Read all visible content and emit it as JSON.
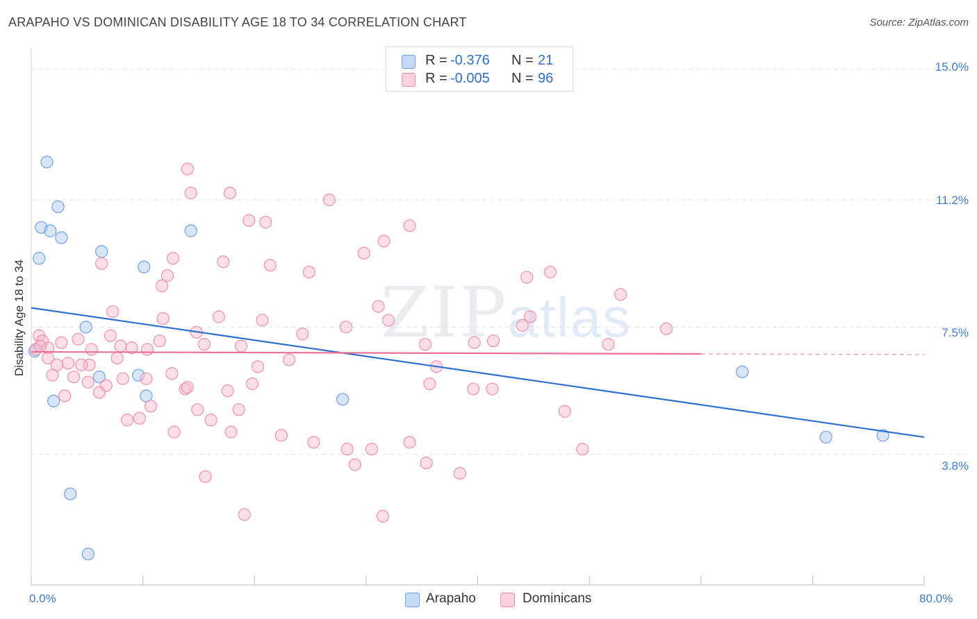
{
  "header": {
    "title": "ARAPAHO VS DOMINICAN DISABILITY AGE 18 TO 34 CORRELATION CHART",
    "source": "Source: ZipAtlas.com"
  },
  "legend": {
    "series": [
      {
        "r_label": "R =",
        "r_value": "-0.376",
        "n_label": "N =",
        "n_value": "21",
        "color": "#a8c8f0"
      },
      {
        "r_label": "R =",
        "r_value": "-0.005",
        "n_label": "N =",
        "n_value": "96",
        "color": "#f6b8cb"
      }
    ]
  },
  "bottom_legend": {
    "items": [
      {
        "label": "Arapaho",
        "color": "#a8c8f0"
      },
      {
        "label": "Dominicans",
        "color": "#f6b8cb"
      }
    ]
  },
  "watermark": {
    "zip": "ZIP",
    "atlas": "atlas"
  },
  "chart_data": {
    "type": "scatter",
    "title": "ARAPAHO VS DOMINICAN DISABILITY AGE 18 TO 34 CORRELATION CHART",
    "xlabel": "",
    "ylabel": "Disability Age 18 to 34",
    "xlim": [
      0,
      80
    ],
    "ylim": [
      0,
      15.6
    ],
    "x_tick_labels": [
      {
        "value": 0,
        "label": "0.0%"
      },
      {
        "value": 80,
        "label": "80.0%"
      }
    ],
    "y_tick_labels": [
      {
        "value": 15.0,
        "label": "15.0%"
      },
      {
        "value": 11.2,
        "label": "11.2%"
      },
      {
        "value": 7.5,
        "label": "7.5%"
      },
      {
        "value": 3.8,
        "label": "3.8%"
      }
    ],
    "series": [
      {
        "name": "Arapaho",
        "color": "#6ea0e6",
        "fill": "#a8c8f0",
        "trend": {
          "x": [
            0,
            80
          ],
          "y": [
            8.06,
            4.3
          ],
          "color": "#2f6fd1"
        },
        "points": [
          [
            1.4,
            12.3
          ],
          [
            2.4,
            11.0
          ],
          [
            0.9,
            10.4
          ],
          [
            1.7,
            10.3
          ],
          [
            2.7,
            10.1
          ],
          [
            0.7,
            9.5
          ],
          [
            6.3,
            9.7
          ],
          [
            10.1,
            9.25
          ],
          [
            14.3,
            10.3
          ],
          [
            4.9,
            7.5
          ],
          [
            0.3,
            6.8
          ],
          [
            9.6,
            6.1
          ],
          [
            6.1,
            6.05
          ],
          [
            2.0,
            5.35
          ],
          [
            10.3,
            5.5
          ],
          [
            27.9,
            5.4
          ],
          [
            63.7,
            6.2
          ],
          [
            71.2,
            4.3
          ],
          [
            76.3,
            4.35
          ],
          [
            3.5,
            2.65
          ],
          [
            5.1,
            0.9
          ]
        ]
      },
      {
        "name": "Dominicans",
        "color": "#ee8fae",
        "fill": "#f6b8cb",
        "trend": {
          "x": [
            0,
            60
          ],
          "y": [
            6.78,
            6.72
          ],
          "dashed_to": 80,
          "color": "#e86f98"
        },
        "points": [
          [
            14.0,
            12.1
          ],
          [
            14.3,
            11.4
          ],
          [
            17.8,
            11.4
          ],
          [
            26.7,
            11.2
          ],
          [
            19.5,
            10.6
          ],
          [
            21.0,
            10.55
          ],
          [
            33.9,
            10.45
          ],
          [
            31.6,
            10.0
          ],
          [
            29.8,
            9.65
          ],
          [
            12.7,
            9.5
          ],
          [
            6.3,
            9.35
          ],
          [
            17.2,
            9.4
          ],
          [
            21.4,
            9.3
          ],
          [
            24.9,
            9.1
          ],
          [
            12.2,
            9.0
          ],
          [
            44.4,
            8.95
          ],
          [
            46.5,
            9.1
          ],
          [
            11.7,
            8.7
          ],
          [
            52.8,
            8.45
          ],
          [
            31.1,
            8.1
          ],
          [
            7.3,
            7.95
          ],
          [
            11.8,
            7.75
          ],
          [
            16.8,
            7.8
          ],
          [
            20.7,
            7.7
          ],
          [
            32.0,
            7.7
          ],
          [
            44.7,
            7.8
          ],
          [
            44.0,
            7.55
          ],
          [
            56.9,
            7.45
          ],
          [
            28.2,
            7.5
          ],
          [
            14.8,
            7.35
          ],
          [
            24.3,
            7.3
          ],
          [
            0.7,
            7.25
          ],
          [
            1.0,
            7.1
          ],
          [
            2.7,
            7.05
          ],
          [
            7.1,
            7.25
          ],
          [
            11.5,
            7.1
          ],
          [
            15.5,
            7.0
          ],
          [
            18.8,
            6.95
          ],
          [
            35.3,
            7.0
          ],
          [
            39.7,
            7.05
          ],
          [
            41.4,
            7.1
          ],
          [
            0.4,
            6.85
          ],
          [
            1.5,
            6.9
          ],
          [
            5.4,
            6.85
          ],
          [
            8.0,
            6.95
          ],
          [
            9.0,
            6.9
          ],
          [
            10.4,
            6.85
          ],
          [
            4.2,
            7.15
          ],
          [
            7.7,
            6.6
          ],
          [
            1.5,
            6.6
          ],
          [
            2.3,
            6.4
          ],
          [
            3.3,
            6.45
          ],
          [
            5.2,
            6.4
          ],
          [
            0.8,
            6.95
          ],
          [
            4.5,
            6.4
          ],
          [
            23.1,
            6.55
          ],
          [
            20.3,
            6.35
          ],
          [
            36.3,
            6.35
          ],
          [
            51.7,
            7.0
          ],
          [
            1.9,
            6.1
          ],
          [
            3.8,
            6.05
          ],
          [
            8.2,
            6.0
          ],
          [
            10.3,
            6.0
          ],
          [
            12.6,
            6.15
          ],
          [
            5.1,
            5.9
          ],
          [
            6.7,
            5.8
          ],
          [
            13.8,
            5.7
          ],
          [
            14.0,
            5.75
          ],
          [
            17.6,
            5.65
          ],
          [
            19.8,
            5.85
          ],
          [
            35.7,
            5.85
          ],
          [
            39.6,
            5.7
          ],
          [
            41.3,
            5.7
          ],
          [
            3.0,
            5.5
          ],
          [
            6.1,
            5.6
          ],
          [
            10.7,
            5.2
          ],
          [
            14.9,
            5.1
          ],
          [
            18.6,
            5.1
          ],
          [
            47.8,
            5.05
          ],
          [
            8.6,
            4.8
          ],
          [
            9.7,
            4.85
          ],
          [
            16.1,
            4.8
          ],
          [
            12.8,
            4.45
          ],
          [
            17.9,
            4.45
          ],
          [
            22.4,
            4.35
          ],
          [
            25.3,
            4.15
          ],
          [
            28.3,
            3.95
          ],
          [
            30.5,
            3.95
          ],
          [
            33.9,
            4.15
          ],
          [
            49.4,
            3.95
          ],
          [
            29.0,
            3.5
          ],
          [
            35.4,
            3.55
          ],
          [
            38.4,
            3.25
          ],
          [
            15.6,
            3.15
          ],
          [
            19.1,
            2.05
          ],
          [
            31.5,
            2.0
          ]
        ]
      }
    ],
    "grid": true,
    "legend_position": "top-center"
  }
}
